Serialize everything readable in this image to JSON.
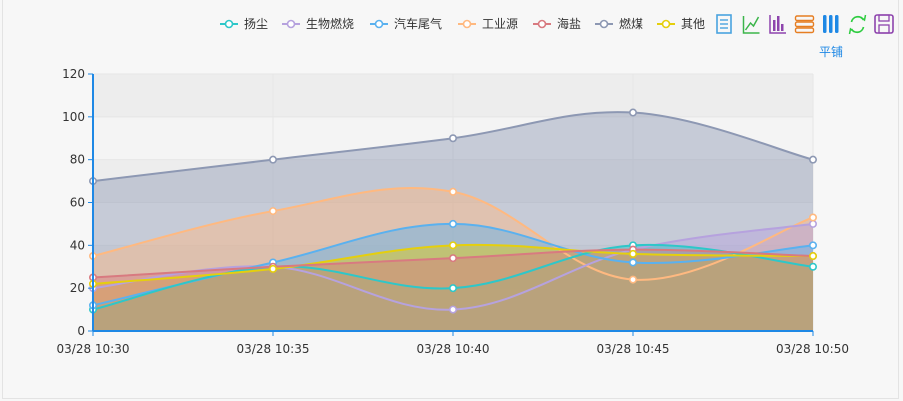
{
  "toolbox": {
    "items": [
      {
        "name": "data-view-icon",
        "color": "#4aa3df"
      },
      {
        "name": "line-chart-icon",
        "color": "#3bb54a"
      },
      {
        "name": "bar-chart-icon",
        "color": "#8e44ad"
      },
      {
        "name": "stack-icon",
        "color": "#e67e22"
      },
      {
        "name": "tiled-icon",
        "color": "#1e88e5"
      },
      {
        "name": "restore-icon",
        "color": "#2ecc40"
      },
      {
        "name": "save-image-icon",
        "color": "#8e44ad"
      }
    ],
    "active_label": "平铺"
  },
  "chart_data": {
    "type": "area",
    "categories": [
      "03/28 10:30",
      "03/28 10:35",
      "03/28 10:40",
      "03/28 10:45",
      "03/28 10:50"
    ],
    "ylim": [
      0,
      120
    ],
    "yticks": [
      0,
      20,
      40,
      60,
      80,
      100,
      120
    ],
    "grid": true,
    "legend_position": "top-right",
    "series": [
      {
        "name": "扬尘",
        "color": "#2ec7c9",
        "values": [
          10,
          30,
          20,
          40,
          30
        ]
      },
      {
        "name": "生物燃烧",
        "color": "#b6a2de",
        "values": [
          20,
          30,
          10,
          38,
          50
        ]
      },
      {
        "name": "汽车尾气",
        "color": "#5ab1ef",
        "values": [
          12,
          32,
          50,
          32,
          40
        ]
      },
      {
        "name": "工业源",
        "color": "#ffb980",
        "values": [
          35,
          56,
          65,
          24,
          53
        ]
      },
      {
        "name": "海盐",
        "color": "#d87a80",
        "values": [
          25,
          30,
          34,
          38,
          35
        ]
      },
      {
        "name": "燃煤",
        "color": "#8d98b3",
        "values": [
          70,
          80,
          90,
          102,
          80
        ]
      },
      {
        "name": "其他",
        "color": "#e5cf0d",
        "values": [
          22,
          29,
          40,
          36,
          35
        ]
      }
    ]
  }
}
